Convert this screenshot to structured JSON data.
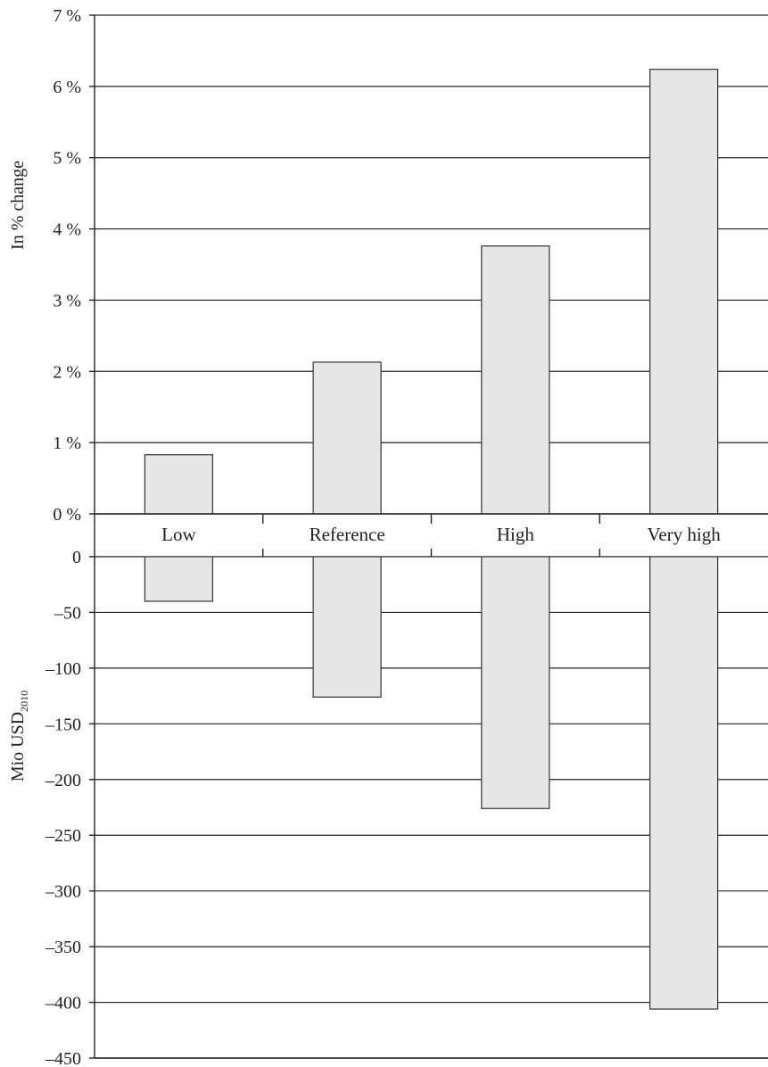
{
  "chart_data": [
    {
      "type": "bar",
      "categories": [
        "Low",
        "Reference",
        "High",
        "Very high"
      ],
      "values": [
        0.83,
        2.13,
        3.76,
        6.24
      ],
      "ylabel": "In % change",
      "ylim": [
        0,
        7
      ],
      "yticks": [
        0,
        1,
        2,
        3,
        4,
        5,
        6,
        7
      ],
      "ytick_labels": [
        "0 %",
        "1 %",
        "2 %",
        "3 %",
        "4 %",
        "5 %",
        "6 %",
        "7 %"
      ],
      "grid": true,
      "bar_color": "#e6e6e6"
    },
    {
      "type": "bar",
      "categories": [
        "Low",
        "Reference",
        "High",
        "Very high"
      ],
      "values": [
        -40,
        -126,
        -226,
        -406
      ],
      "ylabel": "Mio USD",
      "ylabel_subscript": "2010",
      "ylim": [
        -450,
        0
      ],
      "yticks": [
        0,
        -50,
        -100,
        -150,
        -200,
        -250,
        -300,
        -350,
        -400,
        -450
      ],
      "ytick_labels": [
        "0",
        "–50",
        "–100",
        "–150",
        "–200",
        "–250",
        "–300",
        "–350",
        "–400",
        "–450"
      ],
      "grid": true,
      "bar_color": "#e6e6e6"
    }
  ]
}
